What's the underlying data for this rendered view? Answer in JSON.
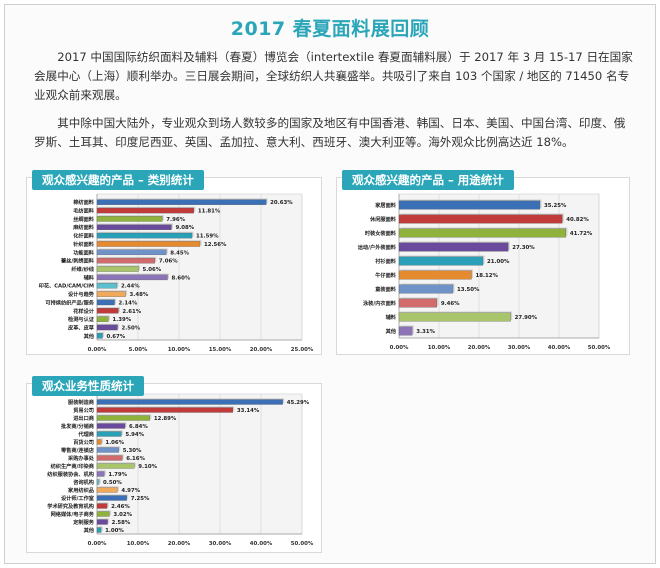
{
  "title": "2017 春夏面料展回顾",
  "paragraph1": "2017 中国国际纺织面料及辅料（春夏）博览会（intertextile 春夏面辅料展）于 2017 年 3 月 15-17 日在国家会展中心（上海）顺利举办。三日展会期间，全球纺织人共襄盛举。共吸引了来自 103 个国家 / 地区的 71450 名专业观众前来观展。",
  "paragraph2": "其中除中国大陆外，专业观众到场人数较多的国家及地区有中国香港、韩国、日本、美国、中国台湾、印度、俄罗斯、土耳其、印度尼西亚、英国、孟加拉、意大利、西班牙、澳大利亚等。海外观众比例高达近 18%。",
  "colors": {
    "accent": "#2aa6b8",
    "title": "#2aa6b8",
    "bar_palette": [
      "#3b6fb6",
      "#c23b3b",
      "#8fb23c",
      "#6a4a9c",
      "#2aa0b8",
      "#e58a2e",
      "#6f93c9",
      "#d26b6b",
      "#a9c56c",
      "#8d74b8",
      "#5cbfcf",
      "#f0a95a"
    ]
  },
  "chart_data": [
    {
      "type": "bar",
      "orientation": "horizontal",
      "title": "观众感兴趣的产品 – 类别统计",
      "categories": [
        "棉纺面料",
        "毛纺面料",
        "丝绸面料",
        "麻纺面料",
        "化纤面料",
        "针织面料",
        "功能面料",
        "蕾丝/刺绣面料",
        "纤维/纱线",
        "辅料",
        "印花、CAD/CAM/CIM",
        "设计与趋势",
        "可持续纺织产品/服务",
        "花样设计",
        "检测与认证",
        "皮革、皮草",
        "其他"
      ],
      "values": [
        20.63,
        11.81,
        7.96,
        9.08,
        11.59,
        12.56,
        8.45,
        7.06,
        5.06,
        8.6,
        2.44,
        3.48,
        2.14,
        2.61,
        1.39,
        2.5,
        0.67
      ],
      "value_labels": [
        "20.63%",
        "11.81%",
        "7.96%",
        "9.08%",
        "11.59%",
        "12.56%",
        "8.45%",
        "7.06%",
        "5.06%",
        "8.60%",
        "2.44%",
        "3.48%",
        "2.14%",
        "2.61%",
        "1.39%",
        "2.50%",
        "0.67%"
      ],
      "xlim": [
        0,
        25
      ],
      "x_ticks": [
        "0.00%",
        "5.00%",
        "10.00%",
        "15.00%",
        "20.00%",
        "25.00%"
      ],
      "grid": true,
      "legend": "none"
    },
    {
      "type": "bar",
      "orientation": "horizontal",
      "title": "观众感兴趣的产品 – 用途统计",
      "categories": [
        "家居面料",
        "休闲服面料",
        "时装女装面料",
        "运动/户外装面料",
        "衬衫面料",
        "牛仔面料",
        "童装面料",
        "泳装/内衣面料",
        "辅料",
        "其他"
      ],
      "values": [
        35.25,
        40.82,
        41.72,
        27.3,
        21.0,
        18.12,
        13.5,
        9.46,
        27.9,
        3.31
      ],
      "value_labels": [
        "35.25%",
        "40.82%",
        "41.72%",
        "27.30%",
        "21.00%",
        "18.12%",
        "13.50%",
        "9.46%",
        "27.90%",
        "3.31%"
      ],
      "xlim": [
        0,
        50
      ],
      "x_ticks": [
        "0.00%",
        "10.00%",
        "20.00%",
        "30.00%",
        "40.00%",
        "50.00%"
      ],
      "grid": true,
      "legend": "none"
    },
    {
      "type": "bar",
      "orientation": "horizontal",
      "title": "观众业务性质统计",
      "categories": [
        "服装制造商",
        "贸易公司",
        "进出口商",
        "批发商/分销商",
        "代理商",
        "百货公司",
        "零售商/连锁店",
        "采购办事处",
        "纺织生产商/印染商",
        "纺织服装协会、机构",
        "咨询机构",
        "家用纺织品",
        "设计师/工作室",
        "学术研究及教育机构",
        "网络媒体/电子商务",
        "定制服务",
        "其他"
      ],
      "values": [
        45.29,
        33.14,
        12.89,
        6.84,
        5.94,
        1.06,
        5.3,
        6.16,
        9.1,
        1.79,
        0.5,
        4.97,
        7.25,
        2.46,
        3.02,
        2.58,
        1.0
      ],
      "value_labels": [
        "45.29%",
        "33.14%",
        "12.89%",
        "6.84%",
        "5.94%",
        "1.06%",
        "5.30%",
        "6.16%",
        "9.10%",
        "1.79%",
        "0.50%",
        "4.97%",
        "7.25%",
        "2.46%",
        "3.02%",
        "2.58%",
        "1.00%"
      ],
      "xlim": [
        0,
        50
      ],
      "x_ticks": [
        "0.00%",
        "10.00%",
        "20.00%",
        "30.00%",
        "40.00%",
        "50.00%"
      ],
      "grid": true,
      "legend": "none"
    }
  ]
}
